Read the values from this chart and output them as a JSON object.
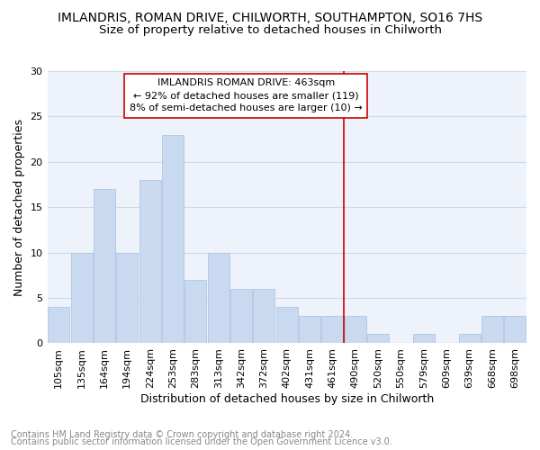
{
  "title": "IMLANDRIS, ROMAN DRIVE, CHILWORTH, SOUTHAMPTON, SO16 7HS",
  "subtitle": "Size of property relative to detached houses in Chilworth",
  "xlabel": "Distribution of detached houses by size in Chilworth",
  "ylabel": "Number of detached properties",
  "categories": [
    "105sqm",
    "135sqm",
    "164sqm",
    "194sqm",
    "224sqm",
    "253sqm",
    "283sqm",
    "313sqm",
    "342sqm",
    "372sqm",
    "402sqm",
    "431sqm",
    "461sqm",
    "490sqm",
    "520sqm",
    "550sqm",
    "579sqm",
    "609sqm",
    "639sqm",
    "668sqm",
    "698sqm"
  ],
  "values": [
    4,
    10,
    17,
    10,
    18,
    23,
    7,
    10,
    6,
    6,
    4,
    3,
    3,
    3,
    1,
    0,
    1,
    0,
    1,
    3,
    3
  ],
  "bar_color": "#c9d9f0",
  "bar_edge_color": "#a8c0e0",
  "vline_color": "#cc0000",
  "vline_x": 12.5,
  "annotation_line1": "IMLANDRIS ROMAN DRIVE: 463sqm",
  "annotation_line2": "← 92% of detached houses are smaller (119)",
  "annotation_line3": "8% of semi-detached houses are larger (10) →",
  "annotation_box_color": "#cc0000",
  "ylim": [
    0,
    30
  ],
  "yticks": [
    0,
    5,
    10,
    15,
    20,
    25,
    30
  ],
  "footnote1": "Contains HM Land Registry data © Crown copyright and database right 2024.",
  "footnote2": "Contains public sector information licensed under the Open Government Licence v3.0.",
  "background_color": "#edf2fb",
  "grid_color": "#d0d8e8",
  "title_fontsize": 10,
  "subtitle_fontsize": 9.5,
  "axis_label_fontsize": 9,
  "tick_fontsize": 8,
  "annotation_fontsize": 8,
  "footnote_fontsize": 7
}
